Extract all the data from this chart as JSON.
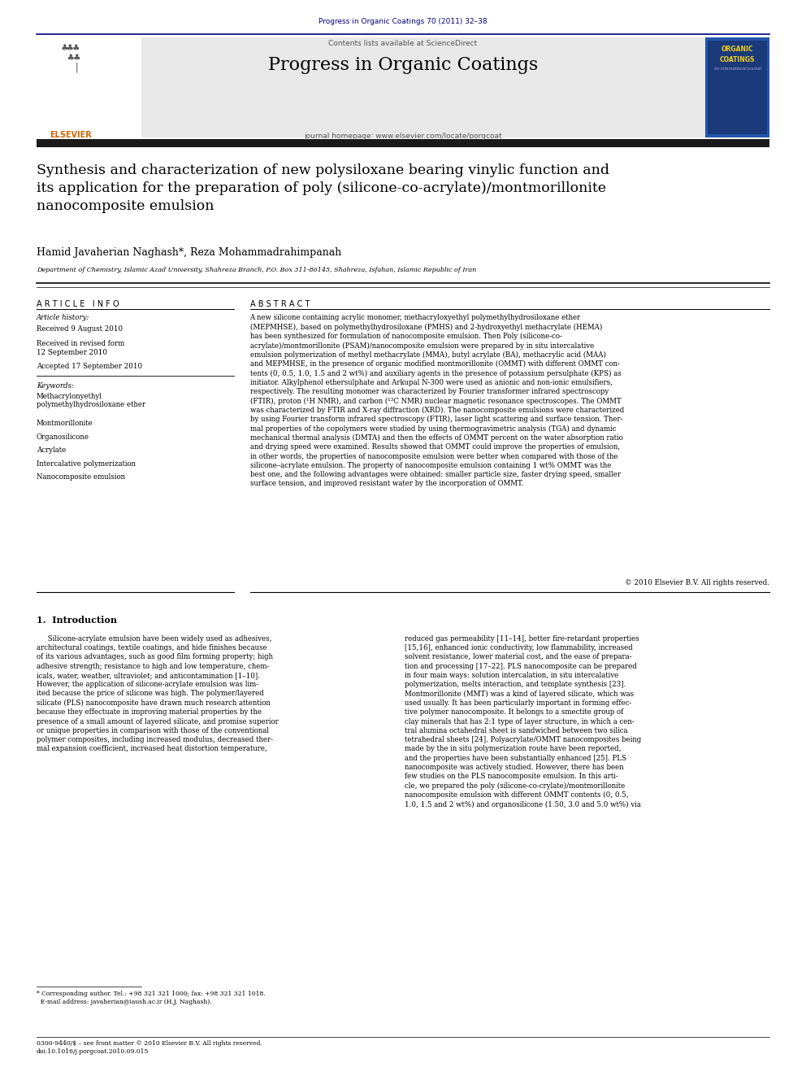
{
  "page_width": 9.92,
  "page_height": 13.23,
  "bg_color": "#ffffff",
  "header_journal_ref": "Progress in Organic Coatings 70 (2011) 32–38",
  "header_journal_ref_color": "#000080",
  "journal_banner_bg": "#e8e8e8",
  "journal_banner_text": "Contents lists available at ScienceDirect",
  "journal_name": "Progress in Organic Coatings",
  "journal_name_color": "#000000",
  "journal_homepage": "journal homepage: www.elsevier.com/locate/porgcoat",
  "elsevier_logo_color": "#cc6600",
  "paper_title": "Synthesis and characterization of new polysiloxane bearing vinylic function and\nits application for the preparation of poly (silicone-co-acrylate)/montmorillonite\nnanocomposite emulsion",
  "authors": "Hamid Javaherian Naghash*, Reza Mohammadrahimpanah",
  "affiliation": "Department of Chemistry, Islamic Azad University, Shahreza Branch, P.O. Box 311-86145, Shahreza, Isfahan, Islamic Republic of Iran",
  "article_info_label": "A R T I C L E   I N F O",
  "abstract_label": "A B S T R A C T",
  "article_history_label": "Article history:",
  "received_date": "Received 9 August 2010",
  "received_revised": "Received in revised form\n12 September 2010",
  "accepted": "Accepted 17 September 2010",
  "keywords_label": "Keywords:",
  "keywords": [
    "Methacrylonyethyl\npolymethylhydrosiloxane ether",
    "Montmorillonite",
    "Organosilicone",
    "Acrylate",
    "Intercalative polymerization",
    "Nanocomposite emulsion"
  ],
  "abstract_text": "A new silicone containing acrylic monomer, methacryloxyethyl polymethylhydrosiloxane ether\n(MEPMHSE), based on polymethylhydrosiloxane (PMHS) and 2-hydroxyethyl methacrylate (HEMA)\nhas been synthesized for formulation of nanocomposite emulsion. Then Poly (silicone-co-\nacrylate)/montmorillonite (PSAM)/nanocomposite emulsion were prepared by in situ intercalative\nemulsion polymerization of methyl methacrylate (MMA), butyl acrylate (BA), methacrylic acid (MAA)\nand MEPMHSE, in the presence of organic modified montmorillonite (OMMT) with different OMMT con-\ntents (0, 0.5, 1.0, 1.5 and 2 wt%) and auxiliary agents in the presence of potassium persulphate (KPS) as\ninitiator. Alkylphenol ethersulphate and Arkupal N-300 were used as anionic and non-ionic emulsifiers,\nrespectively. The resulting monomer was characterized by Fourier transformer infrared spectroscopy\n(FTIR), proton (¹H NMR), and carbon (¹³C NMR) nuclear magnetic resonance spectroscopes. The OMMT\nwas characterized by FTIR and X-ray diffraction (XRD). The nanocomposite emulsions were characterized\nby using Fourier transform infrared spectroscopy (FTIR), laser light scattering and surface tension. Ther-\nmal properties of the copolymers were studied by using thermogravimetric analysis (TGA) and dynamic\nmechanical thermal analysis (DMTA) and then the effects of OMMT percent on the water absorption ratio\nand drying speed were examined. Results showed that OMMT could improve the properties of emulsion,\nin other words, the properties of nanocomposite emulsion were better when compared with those of the\nsilicone–acrylate emulsion. The property of nanocomposite emulsion containing 1 wt% OMMT was the\nbest one, and the following advantages were obtained: smaller particle size, faster drying speed, smaller\nsurface tension, and improved resistant water by the incorporation of OMMT.",
  "copyright": "© 2010 Elsevier B.V. All rights reserved.",
  "intro_heading": "1.  Introduction",
  "intro_col1": "     Silicone-acrylate emulsion have been widely used as adhesives,\narchitectural coatings, textile coatings, and hide finishes because\nof its various advantages, such as good film forming property; high\nadhesive strength; resistance to high and low temperature, chem-\nicals, water, weather, ultraviolet; and anticontamination [1–10].\nHowever, the application of silicone-acrylate emulsion was lim-\nited because the price of silicone was high. The polymer/layered\nsilicate (PLS) nanocomposite have drawn much research attention\nbecause they effectuate in improving material properties by the\npresence of a small amount of layered silicate, and promise superior\nor unique properties in comparison with those of the conventional\npolymer composites, including increased modulus, decreased ther-\nmal expansion coefficient, increased heat distortion temperature,",
  "intro_col2": "reduced gas permeability [11–14], better fire-retardant properties\n[15,16], enhanced ionic conductivity, low flammability, increased\nsolvent resistance, lower material cost, and the ease of prepara-\ntion and processing [17–22]. PLS nanocomposite can be prepared\nin four main ways: solution intercalation, in situ intercalative\npolymerization, melts interaction, and template synthesis [23].\nMontmorillonite (MMT) was a kind of layered silicate, which was\nused usually. It has been particularly important in forming effec-\ntive polymer nanocomposite. It belongs to a smectite group of\nclay minerals that has 2:1 type of layer structure, in which a cen-\ntral alumina octahedral sheet is sandwiched between two silica\ntetrahedral sheets [24]. Polyacrylate/OMMT nanocomposites being\nmade by the in situ polymerization route have been reported,\nand the properties have been substantially enhanced [25]. PLS\nnanocomposite was actively studied. However, there has been\nfew studies on the PLS nanocomposite emulsion. In this arti-\ncle, we prepared the poly (silicone-co-crylate)/montmorillonite\nnanocomposite emulsion with different OMMT contents (0, 0.5,\n1.0, 1.5 and 2 wt%) and organosilicone (1.50, 3.0 and 5.0 wt%) via",
  "footer_text": "0300-9440/$ – see front matter © 2010 Elsevier B.V. All rights reserved.\ndoi:10.1016/j.porgcoat.2010.09.015",
  "footnote_text": "* Corresponding author. Tel.: +98 321 321 1000; fax: +98 321 321 1018.\n  E-mail address: javaherian@iaush.ac.ir (H.J. Naghash).",
  "text_color": "#000000",
  "dark_bar_color": "#1a1a1a"
}
